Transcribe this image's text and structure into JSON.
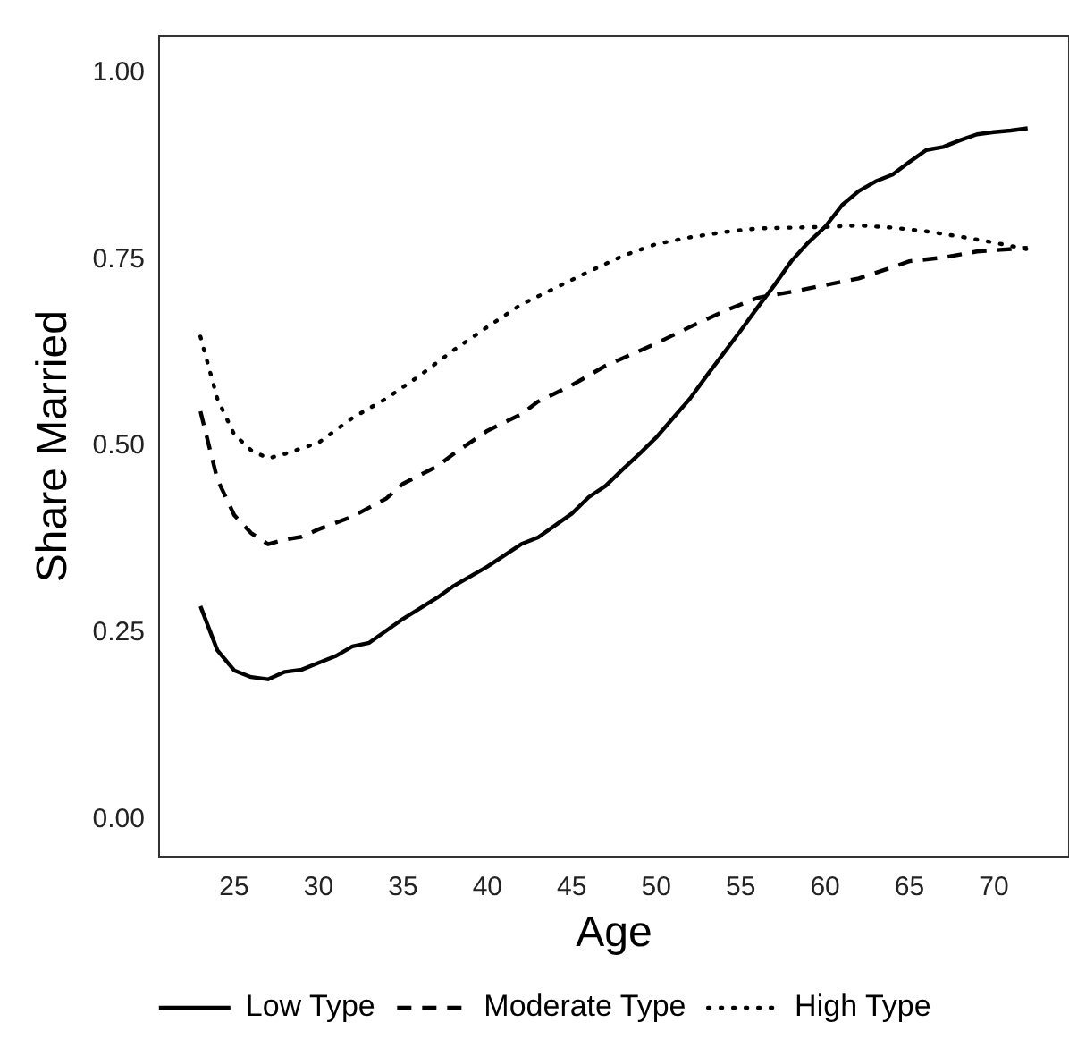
{
  "chart_data": {
    "type": "line",
    "xlabel": "Age",
    "ylabel": "Share Married",
    "xlim": [
      20.55,
      74.45
    ],
    "xticks": [
      25,
      30,
      35,
      40,
      45,
      50,
      55,
      60,
      65,
      70
    ],
    "ylim": [
      -0.05,
      1.05
    ],
    "yticks": [
      {
        "value": 0,
        "label": "0.00"
      },
      {
        "value": 0.25,
        "label": "0.25"
      },
      {
        "value": 0.5,
        "label": "0.50"
      },
      {
        "value": 0.75,
        "label": "0.75"
      },
      {
        "value": 1,
        "label": "1.00"
      }
    ],
    "grid": false,
    "legend": "bottom",
    "series": [
      {
        "name": "Low Type",
        "color": "#000000",
        "line_style": "solid",
        "x": [
          23,
          24,
          25,
          26,
          27,
          28,
          29,
          30,
          31,
          32,
          33,
          35,
          37,
          38,
          40,
          42,
          43,
          45,
          46,
          47,
          48,
          49,
          50,
          52,
          53,
          54,
          55,
          56,
          57,
          58,
          59,
          60,
          61,
          62,
          63,
          64,
          65,
          66,
          67,
          68,
          69,
          70,
          71,
          72
        ],
        "values": [
          0.286,
          0.227,
          0.2,
          0.191,
          0.188,
          0.198,
          0.201,
          0.21,
          0.219,
          0.232,
          0.237,
          0.269,
          0.297,
          0.313,
          0.339,
          0.369,
          0.378,
          0.41,
          0.432,
          0.447,
          0.469,
          0.49,
          0.512,
          0.564,
          0.595,
          0.625,
          0.655,
          0.686,
          0.716,
          0.748,
          0.773,
          0.794,
          0.823,
          0.842,
          0.855,
          0.864,
          0.881,
          0.897,
          0.901,
          0.91,
          0.918,
          0.921,
          0.923,
          0.926
        ]
      },
      {
        "name": "Moderate Type",
        "color": "#000000",
        "line_style": "dashed",
        "x": [
          23,
          24,
          25,
          26,
          27,
          28,
          29,
          30,
          32,
          34,
          35,
          37,
          38,
          40,
          42,
          43,
          45,
          47,
          48,
          50,
          52,
          54,
          56,
          58,
          60,
          62,
          64,
          65,
          67,
          69,
          72
        ],
        "values": [
          0.547,
          0.456,
          0.408,
          0.384,
          0.369,
          0.375,
          0.379,
          0.389,
          0.406,
          0.43,
          0.45,
          0.473,
          0.49,
          0.521,
          0.543,
          0.56,
          0.582,
          0.608,
          0.618,
          0.638,
          0.66,
          0.681,
          0.699,
          0.707,
          0.716,
          0.725,
          0.74,
          0.748,
          0.753,
          0.761,
          0.766
        ]
      },
      {
        "name": "High Type",
        "color": "#000000",
        "line_style": "dotted",
        "x": [
          23,
          24,
          25,
          26,
          27,
          28,
          30,
          32,
          34,
          36,
          38,
          40,
          42,
          44,
          46,
          48,
          50,
          52,
          54,
          56,
          58,
          60,
          62,
          64,
          66,
          68,
          70,
          72
        ],
        "values": [
          0.647,
          0.564,
          0.516,
          0.495,
          0.484,
          0.49,
          0.505,
          0.538,
          0.564,
          0.595,
          0.629,
          0.66,
          0.69,
          0.712,
          0.734,
          0.755,
          0.771,
          0.78,
          0.787,
          0.792,
          0.793,
          0.794,
          0.796,
          0.793,
          0.788,
          0.781,
          0.773,
          0.764
        ]
      }
    ]
  }
}
